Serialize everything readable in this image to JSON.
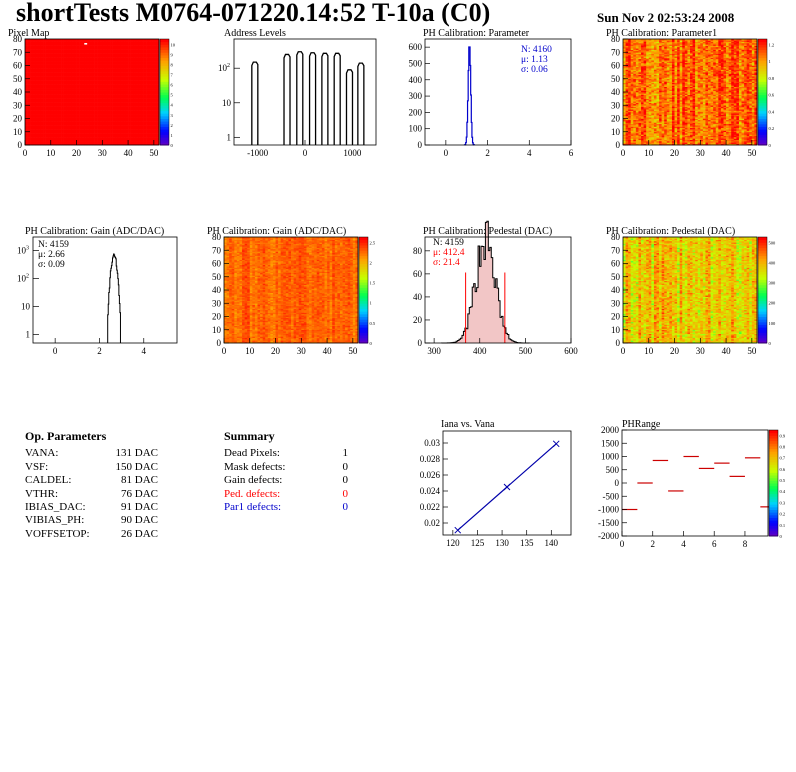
{
  "header": {
    "title": "shortTests M0764-071220.14:52 T-10a (C0)",
    "date": "Sun Nov  2 02:53:24 2008"
  },
  "op_parameters": {
    "title": "Op. Parameters",
    "rows": [
      {
        "name": "VANA:",
        "value": "131 DAC"
      },
      {
        "name": "VSF:",
        "value": "150 DAC"
      },
      {
        "name": "CALDEL:",
        "value": "81 DAC"
      },
      {
        "name": "VTHR:",
        "value": "76 DAC"
      },
      {
        "name": "IBIAS_DAC:",
        "value": "91 DAC"
      },
      {
        "name": "VIBIAS_PH:",
        "value": "90 DAC"
      },
      {
        "name": "VOFFSETOP:",
        "value": "26 DAC"
      }
    ]
  },
  "summary": {
    "title": "Summary",
    "rows": [
      {
        "name": "Dead Pixels:",
        "value": "1",
        "color": "#000000"
      },
      {
        "name": "Mask defects:",
        "value": "0",
        "color": "#000000"
      },
      {
        "name": "Gain defects:",
        "value": "0",
        "color": "#000000"
      },
      {
        "name": "Ped. defects:",
        "value": "0",
        "color": "#ff0000"
      },
      {
        "name": "Par1 defects:",
        "value": "0",
        "color": "#0000cc"
      }
    ]
  },
  "chart_data": [
    {
      "id": "pixelmap",
      "type": "heatmap",
      "title": "Pixel Map",
      "xlim": [
        0,
        52
      ],
      "ylim": [
        0,
        80
      ],
      "xticks": [
        "0",
        "10",
        "20",
        "30",
        "40",
        "50"
      ],
      "yticks": [
        "0",
        "10",
        "20",
        "30",
        "40",
        "50",
        "60",
        "70",
        "80"
      ],
      "colorbar_ticks": [
        "0",
        "1",
        "2",
        "3",
        "4",
        "5",
        "6",
        "7",
        "8",
        "9",
        "10"
      ],
      "fill": "uniform-max",
      "dead_pixels": [
        [
          23,
          76
        ]
      ]
    },
    {
      "id": "address",
      "type": "line",
      "title": "Address Levels",
      "log_y": true,
      "xlim": [
        -1500,
        1500
      ],
      "xticks": [
        "-1000",
        "0",
        "1000"
      ],
      "ytick_labels": [
        "1",
        "10",
        "10^2"
      ],
      "peaks": [
        {
          "x": -1060,
          "h": 150
        },
        {
          "x": -380,
          "h": 250
        },
        {
          "x": -110,
          "h": 300
        },
        {
          "x": 160,
          "h": 280
        },
        {
          "x": 420,
          "h": 270
        },
        {
          "x": 680,
          "h": 270
        },
        {
          "x": 940,
          "h": 90
        },
        {
          "x": 1180,
          "h": 140
        }
      ]
    },
    {
      "id": "phpar",
      "type": "bar",
      "title": "PH Calibration: Parameter",
      "xlim": [
        -1,
        6
      ],
      "ylim": [
        0,
        650
      ],
      "xticks": [
        "0",
        "2",
        "4",
        "6"
      ],
      "yticks": [
        "0",
        "100",
        "200",
        "300",
        "400",
        "500",
        "600"
      ],
      "stats": [
        "N: 4160",
        "μ: 1.13",
        "σ: 0.06"
      ],
      "stats_color": "#0000cc",
      "mean": 1.13,
      "sigma": 0.06,
      "peak": 630
    },
    {
      "id": "phpar1",
      "type": "heatmap",
      "title": "PH Calibration: Parameter1",
      "xlim": [
        0,
        52
      ],
      "ylim": [
        0,
        80
      ],
      "xticks": [
        "0",
        "10",
        "20",
        "30",
        "40",
        "50"
      ],
      "yticks": [
        "0",
        "10",
        "20",
        "30",
        "40",
        "50",
        "60",
        "70",
        "80"
      ],
      "colorbar_ticks": [
        "0",
        "0.2",
        "0.4",
        "0.6",
        "0.8",
        "1",
        "1.2"
      ],
      "range": [
        0.7,
        1.05
      ],
      "spread": 0.3
    },
    {
      "id": "gainhist",
      "type": "bar",
      "title": "PH Calibration: Gain (ADC/DAC)",
      "log_y": true,
      "xlim": [
        -1,
        5.5
      ],
      "xticks": [
        "0",
        "2",
        "4"
      ],
      "ytick_labels": [
        "1",
        "10",
        "10^2",
        "10^3"
      ],
      "stats": [
        "N: 4159",
        "μ: 2.66",
        "σ: 0.09"
      ],
      "stats_color": "#000000",
      "mean": 2.66,
      "sigma": 0.09,
      "peak": 700
    },
    {
      "id": "gainmap",
      "type": "heatmap",
      "title": "PH Calibration: Gain (ADC/DAC)",
      "xlim": [
        0,
        52
      ],
      "ylim": [
        0,
        80
      ],
      "xticks": [
        "0",
        "10",
        "20",
        "30",
        "40",
        "50"
      ],
      "yticks": [
        "0",
        "10",
        "20",
        "30",
        "40",
        "50",
        "60",
        "70",
        "80"
      ],
      "colorbar_ticks": [
        "0",
        "0.5",
        "1",
        "1.5",
        "2",
        "2.5"
      ],
      "range": [
        0.8,
        0.95
      ],
      "spread": 0.1
    },
    {
      "id": "pedhist",
      "type": "bar",
      "title": "PH Calibration: Pedestal (DAC)",
      "xlim": [
        280,
        600
      ],
      "ylim": [
        0,
        92
      ],
      "xticks": [
        "300",
        "400",
        "500",
        "600"
      ],
      "yticks": [
        "0",
        "20",
        "40",
        "60",
        "80"
      ],
      "stats": [
        "N: 4159",
        "μ: 412.4",
        "σ: 21.4"
      ],
      "stats_colors": [
        "#000000",
        "#ff0000",
        "#ff0000"
      ],
      "mean": 412.4,
      "sigma": 21.4,
      "peak": 90,
      "cut_lines": [
        369,
        455
      ]
    },
    {
      "id": "pedmap",
      "type": "heatmap",
      "title": "PH Calibration: Pedestal (DAC)",
      "xlim": [
        0,
        52
      ],
      "ylim": [
        0,
        80
      ],
      "xticks": [
        "0",
        "10",
        "20",
        "30",
        "40",
        "50"
      ],
      "yticks": [
        "0",
        "10",
        "20",
        "30",
        "40",
        "50",
        "60",
        "70",
        "80"
      ],
      "colorbar_ticks": [
        "0",
        "100",
        "200",
        "300",
        "400",
        "500"
      ],
      "range": [
        0.55,
        0.9
      ],
      "spread": 0.25
    },
    {
      "id": "iana",
      "type": "line",
      "title": "Iana vs. Vana",
      "xlim": [
        118,
        144
      ],
      "ylim": [
        0.0185,
        0.0315
      ],
      "xticks": [
        "120",
        "125",
        "130",
        "135",
        "140"
      ],
      "yticks": [
        "0.02",
        "0.022",
        "0.024",
        "0.026",
        "0.028",
        "0.03"
      ],
      "x": [
        121,
        131,
        141
      ],
      "y": [
        0.0191,
        0.0245,
        0.0299
      ]
    },
    {
      "id": "phrange",
      "type": "scatter",
      "title": "PHRange",
      "xlim": [
        0,
        9.5
      ],
      "ylim": [
        -2000,
        2000
      ],
      "xticks": [
        "0",
        "2",
        "4",
        "6",
        "8"
      ],
      "yticks": [
        "-2000",
        "-1500",
        "-1000",
        "-500",
        "0",
        "500",
        "1000",
        "1500",
        "2000"
      ],
      "colorbar_ticks": [
        "0",
        "0.1",
        "0.2",
        "0.3",
        "0.4",
        "0.5",
        "0.6",
        "0.7",
        "0.8",
        "0.9"
      ],
      "segments": [
        {
          "x": 0,
          "y": -1000
        },
        {
          "x": 1,
          "y": 0
        },
        {
          "x": 2,
          "y": 850
        },
        {
          "x": 3,
          "y": -300
        },
        {
          "x": 4,
          "y": 1000
        },
        {
          "x": 5,
          "y": 550
        },
        {
          "x": 6,
          "y": 750
        },
        {
          "x": 7,
          "y": 250
        },
        {
          "x": 8,
          "y": 950
        },
        {
          "x": 9,
          "y": -900
        }
      ]
    }
  ]
}
